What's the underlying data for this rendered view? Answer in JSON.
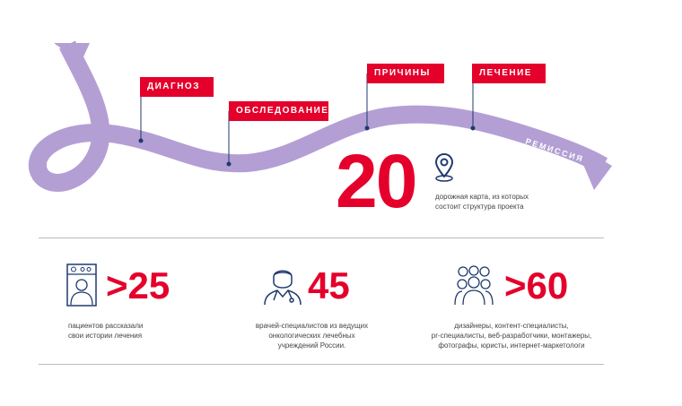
{
  "roadmap": {
    "stages": [
      {
        "label": "ДИАГНОЗ"
      },
      {
        "label": "ОБСЛЕДОВАНИЕ"
      },
      {
        "label": "ПРИЧИНЫ"
      },
      {
        "label": "ЛЕЧЕНИЕ"
      }
    ],
    "ribbon_label": "РЕМИССИЯ",
    "count": "20",
    "count_text_1": "дорожная карта, из которых",
    "count_text_2": "состоит структура проекта",
    "icon": "map-pin-icon"
  },
  "stats": [
    {
      "value": ">25",
      "icon": "patient-card-icon",
      "lines": [
        "пациентов рассказали",
        "свои истории лечения"
      ]
    },
    {
      "value": "45",
      "icon": "doctor-icon",
      "lines": [
        "врачей-специалистов из ведущих",
        "онкологических лечебных",
        "учреждений России."
      ]
    },
    {
      "value": ">60",
      "icon": "team-icon",
      "lines": [
        "дизайнеры, контент-специалисты,",
        "pr-специалисты, веб-разработчики, монтажеры,",
        "фотографы, юристы, интернет-маркетологи"
      ]
    }
  ],
  "colors": {
    "accent": "#e4002b",
    "ribbon": "#b39fd4",
    "icon": "#1f3a6e"
  }
}
